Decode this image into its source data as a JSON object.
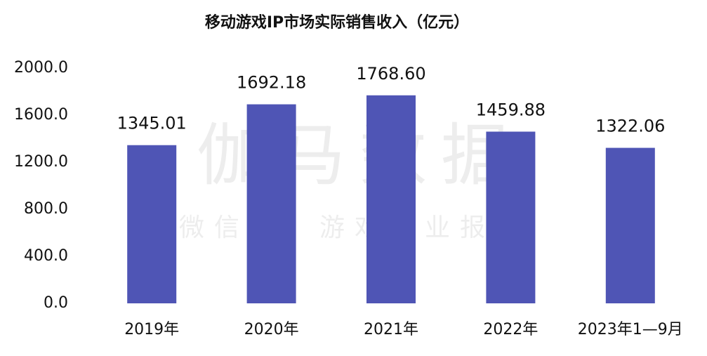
{
  "chart_data": {
    "type": "bar",
    "title": "移动游戏IP市场实际销售收入（亿元）",
    "watermark": "伽马数据",
    "watermark_subtitle": "微信号：游戏产业报告",
    "categories": [
      "2019年",
      "2020年",
      "2021年",
      "2022年",
      "2023年1—9月"
    ],
    "values": [
      1345.01,
      1692.18,
      1768.6,
      1459.88,
      1322.06
    ],
    "value_labels": [
      "1345.01",
      "1692.18",
      "1768.60",
      "1459.88",
      "1322.06"
    ],
    "color": "#4f55b5",
    "ylim": [
      0,
      2000
    ],
    "yticks": [
      {
        "value": 0,
        "label": "0.0"
      },
      {
        "value": 400,
        "label": "400.0"
      },
      {
        "value": 800,
        "label": "800.0"
      },
      {
        "value": 1200,
        "label": "1200.0"
      },
      {
        "value": 1600,
        "label": "1600.0"
      },
      {
        "value": 2000,
        "label": "2000.0"
      }
    ],
    "grid": false
  }
}
